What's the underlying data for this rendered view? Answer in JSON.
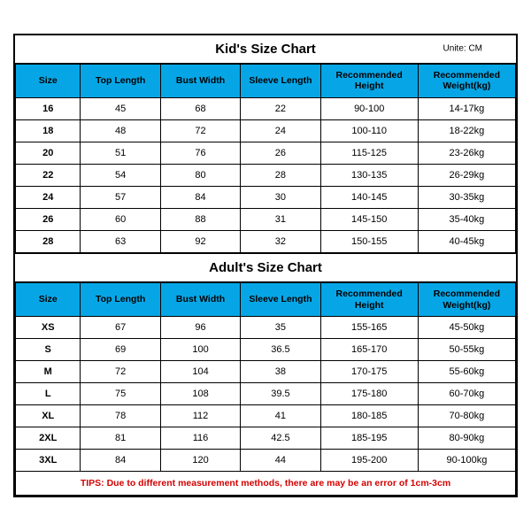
{
  "kids": {
    "title": "Kid's Size Chart",
    "unit": "Unite: CM",
    "columns": [
      "Size",
      "Top Length",
      "Bust Width",
      "Sleeve Length",
      "Recommended\nHeight",
      "Recommended\nWeight(kg)"
    ],
    "rows": [
      [
        "16",
        "45",
        "68",
        "22",
        "90-100",
        "14-17kg"
      ],
      [
        "18",
        "48",
        "72",
        "24",
        "100-110",
        "18-22kg"
      ],
      [
        "20",
        "51",
        "76",
        "26",
        "115-125",
        "23-26kg"
      ],
      [
        "22",
        "54",
        "80",
        "28",
        "130-135",
        "26-29kg"
      ],
      [
        "24",
        "57",
        "84",
        "30",
        "140-145",
        "30-35kg"
      ],
      [
        "26",
        "60",
        "88",
        "31",
        "145-150",
        "35-40kg"
      ],
      [
        "28",
        "63",
        "92",
        "32",
        "150-155",
        "40-45kg"
      ]
    ]
  },
  "adults": {
    "title": "Adult's Size Chart",
    "columns": [
      "Size",
      "Top Length",
      "Bust Width",
      "Sleeve Length",
      "Recommended\nHeight",
      "Recommended\nWeight(kg)"
    ],
    "rows": [
      [
        "XS",
        "67",
        "96",
        "35",
        "155-165",
        "45-50kg"
      ],
      [
        "S",
        "69",
        "100",
        "36.5",
        "165-170",
        "50-55kg"
      ],
      [
        "M",
        "72",
        "104",
        "38",
        "170-175",
        "55-60kg"
      ],
      [
        "L",
        "75",
        "108",
        "39.5",
        "175-180",
        "60-70kg"
      ],
      [
        "XL",
        "78",
        "112",
        "41",
        "180-185",
        "70-80kg"
      ],
      [
        "2XL",
        "81",
        "116",
        "42.5",
        "185-195",
        "80-90kg"
      ],
      [
        "3XL",
        "84",
        "120",
        "44",
        "195-200",
        "90-100kg"
      ]
    ]
  },
  "tips": "TIPS: Due to different measurement methods, there are may be an error of 1cm-3cm",
  "colors": {
    "header_bg": "#06a6e6",
    "border": "#000000",
    "tips_text": "#d40000",
    "background": "#ffffff"
  }
}
